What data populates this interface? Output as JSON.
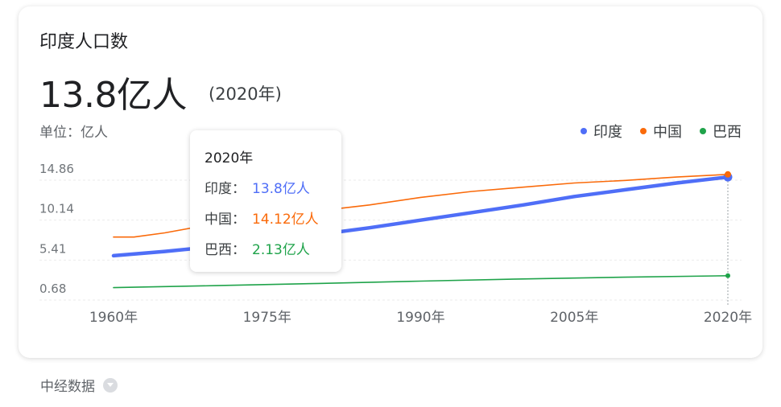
{
  "card": {
    "title": "印度人口数",
    "value": "13.8亿人",
    "year": "(2020年)",
    "unit": "单位：亿人"
  },
  "legend": [
    {
      "label": "印度",
      "color": "#4f6ef7"
    },
    {
      "label": "中国",
      "color": "#fa6a0a"
    },
    {
      "label": "巴西",
      "color": "#1fa34a"
    }
  ],
  "tooltip": {
    "year": "2020年",
    "rows": [
      {
        "label": "印度：",
        "value": "13.8亿人",
        "color": "#4f6ef7"
      },
      {
        "label": "中国：",
        "value": "14.12亿人",
        "color": "#fa6a0a"
      },
      {
        "label": "巴西：",
        "value": "2.13亿人",
        "color": "#1fa34a"
      }
    ]
  },
  "source": {
    "label": "中经数据"
  },
  "chart_data": {
    "type": "line",
    "title": "印度人口数",
    "ylabel": "单位：亿人",
    "ylim": [
      0.68,
      14.86
    ],
    "yticks": [
      "14.86",
      "10.14",
      "5.41",
      "0.68"
    ],
    "xticks": [
      "1960年",
      "1975年",
      "1990年",
      "2005年",
      "2020年"
    ],
    "xlim": [
      1960,
      2020
    ],
    "legend_position": "top-right",
    "grid": true,
    "series": [
      {
        "name": "印度",
        "color": "#4f6ef7",
        "x": [
          1960,
          1965,
          1970,
          1975,
          1980,
          1985,
          1990,
          1995,
          2000,
          2005,
          2010,
          2015,
          2020
        ],
        "y": [
          4.5,
          5.0,
          5.6,
          6.2,
          7.0,
          7.8,
          8.7,
          9.6,
          10.5,
          11.5,
          12.3,
          13.1,
          13.8
        ]
      },
      {
        "name": "中国",
        "color": "#fa6a0a",
        "x": [
          1960,
          1962,
          1965,
          1970,
          1975,
          1980,
          1985,
          1990,
          1995,
          2000,
          2005,
          2010,
          2015,
          2020
        ],
        "y": [
          6.7,
          6.7,
          7.2,
          8.3,
          9.2,
          9.8,
          10.5,
          11.4,
          12.1,
          12.6,
          13.1,
          13.4,
          13.8,
          14.12
        ]
      },
      {
        "name": "巴西",
        "color": "#1fa34a",
        "x": [
          1960,
          1970,
          1980,
          1990,
          2000,
          2010,
          2020
        ],
        "y": [
          0.72,
          0.96,
          1.21,
          1.49,
          1.75,
          1.96,
          2.13
        ]
      }
    ]
  }
}
